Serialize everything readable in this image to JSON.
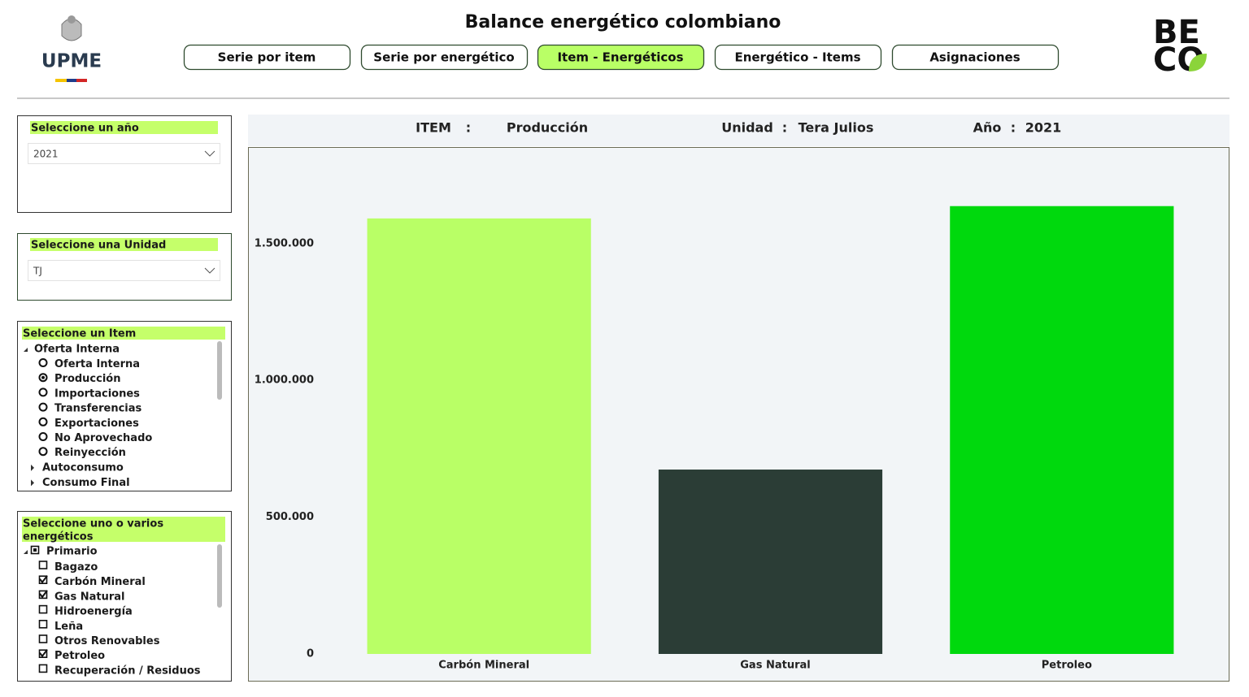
{
  "header": {
    "title": "Balance energético colombiano",
    "logo_left": "UPME",
    "logo_right_lines": [
      "BE",
      "CO"
    ],
    "tabs": [
      "Serie por item",
      "Serie por energético",
      "Item - Energéticos",
      "Energético - Items",
      "Asignaciones"
    ],
    "active_tab": "Item - Energéticos"
  },
  "year_filter": {
    "label": "Seleccione un año",
    "value": "2021"
  },
  "unit_filter": {
    "label": "Seleccione una Unidad",
    "value": "TJ"
  },
  "item_filter": {
    "label": "Seleccione un Item",
    "groups": [
      {
        "name": "Oferta Interna",
        "expanded": true,
        "options": [
          {
            "name": "Oferta Interna",
            "selected": false
          },
          {
            "name": "Producción",
            "selected": true
          },
          {
            "name": "Importaciones",
            "selected": false
          },
          {
            "name": "Transferencias",
            "selected": false
          },
          {
            "name": "Exportaciones",
            "selected": false
          },
          {
            "name": "No Aprovechado",
            "selected": false
          },
          {
            "name": "Reinyección",
            "selected": false
          }
        ]
      },
      {
        "name": "Autoconsumo",
        "expanded": false,
        "options": []
      },
      {
        "name": "Consumo Final",
        "expanded": false,
        "options": []
      }
    ]
  },
  "energy_filter": {
    "label_lines": [
      "Seleccione uno o varios",
      "energéticos"
    ],
    "groups": [
      {
        "name": "Primario",
        "expanded": true,
        "options": [
          {
            "name": "Bagazo",
            "checked": false
          },
          {
            "name": "Carbón Mineral",
            "checked": true
          },
          {
            "name": "Gas Natural",
            "checked": true
          },
          {
            "name": "Hidroenergía",
            "checked": false
          },
          {
            "name": "Leña",
            "checked": false
          },
          {
            "name": "Otros Renovables",
            "checked": false
          },
          {
            "name": "Petroleo",
            "checked": true
          },
          {
            "name": "Recuperación / Residuos",
            "checked": false
          }
        ]
      }
    ]
  },
  "info_bar": {
    "item_label": "ITEM",
    "separator": ":",
    "item_value": "Producción",
    "unit_label": "Unidad",
    "unit_value": "Tera Julios",
    "year_label": "Año",
    "year_value": "2021"
  },
  "chart_data": {
    "type": "bar",
    "categories": [
      "Carbón Mineral",
      "Gas Natural",
      "Petroleo"
    ],
    "values": [
      1592000,
      674000,
      1637000
    ],
    "colors": [
      "#b9ff66",
      "#2b3d36",
      "#00d90d"
    ],
    "ylim": [
      0,
      1850000
    ],
    "yticks": [
      0,
      {
        "value": 500000,
        "label": "500.000"
      },
      {
        "value": 1000000,
        "label": "1.000.000"
      },
      {
        "value": 1500000,
        "label": "1.500.000"
      }
    ],
    "grid": false
  }
}
